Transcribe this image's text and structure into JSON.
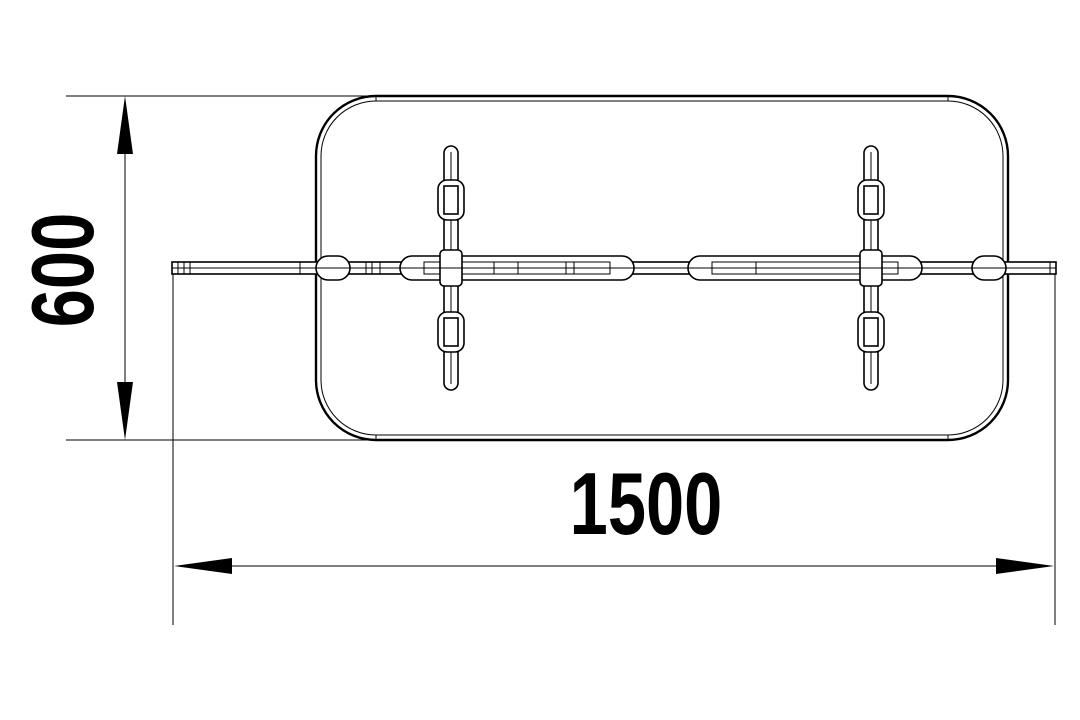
{
  "drawing": {
    "width_label": "1500",
    "height_label": "600"
  },
  "colors": {
    "line": "#000000",
    "background": "#ffffff"
  }
}
